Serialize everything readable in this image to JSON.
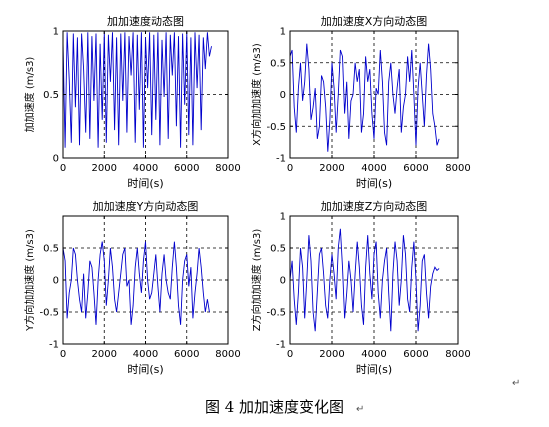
{
  "caption": "图 4  加加速度变化图",
  "para_marks": [
    "↵",
    "↵"
  ],
  "chart_data": [
    {
      "type": "line",
      "title": "加加速度动态图",
      "xlabel": "时间(s)",
      "ylabel": "加加速度 (m/s3)",
      "xlim": [
        0,
        8000
      ],
      "ylim": [
        0,
        1
      ],
      "xticks": [
        0,
        2000,
        4000,
        6000,
        8000
      ],
      "yticks": [
        0,
        0.5,
        1
      ],
      "ytick_labels": [
        "0",
        "0.5",
        "1"
      ],
      "grid": true,
      "color": "#0000cc",
      "series": [
        {
          "x": [
            0,
            100,
            200,
            300,
            400,
            500,
            600,
            700,
            800,
            900,
            1000,
            1100,
            1200,
            1300,
            1400,
            1500,
            1600,
            1700,
            1800,
            1900,
            2000,
            2100,
            2200,
            2300,
            2400,
            2500,
            2600,
            2700,
            2800,
            2900,
            3000,
            3100,
            3200,
            3300,
            3400,
            3500,
            3600,
            3700,
            3800,
            3900,
            4000,
            4100,
            4200,
            4300,
            4400,
            4500,
            4600,
            4700,
            4800,
            4900,
            5000,
            5100,
            5200,
            5300,
            5400,
            5500,
            5600,
            5700,
            5800,
            5900,
            6000,
            6100,
            6200,
            6300,
            6400,
            6500,
            6600,
            6700,
            6800,
            6900,
            7000,
            7100,
            7200
          ],
          "values": [
            0.92,
            0.08,
            0.99,
            0.62,
            0.12,
            0.98,
            0.4,
            0.95,
            0.1,
            0.98,
            0.7,
            0.2,
            0.99,
            0.15,
            0.96,
            0.45,
            0.98,
            0.08,
            0.9,
            0.3,
            0.99,
            0.12,
            0.97,
            0.6,
            0.99,
            0.22,
            0.95,
            0.1,
            0.98,
            0.45,
            0.99,
            0.2,
            0.96,
            0.65,
            0.99,
            0.12,
            0.97,
            0.38,
            0.99,
            0.08,
            0.95,
            0.55,
            0.99,
            0.18,
            0.97,
            0.3,
            0.99,
            0.1,
            0.93,
            0.48,
            0.99,
            0.15,
            0.97,
            0.65,
            0.99,
            0.25,
            0.96,
            0.08,
            0.98,
            0.42,
            0.99,
            0.18,
            0.95,
            0.1,
            0.99,
            0.55,
            0.97,
            0.22,
            0.95,
            0.7,
            0.99,
            0.8,
            0.88
          ]
        }
      ]
    },
    {
      "type": "line",
      "title": "加加速度X方向动态图",
      "xlabel": "时间(s)",
      "ylabel": "X方向加加速度 (m/s3)",
      "xlim": [
        0,
        8000
      ],
      "ylim": [
        -1,
        1
      ],
      "xticks": [
        0,
        2000,
        4000,
        6000,
        8000
      ],
      "yticks": [
        -1,
        -0.5,
        0,
        0.5,
        1
      ],
      "ytick_labels": [
        "-1",
        "-0.5",
        "0",
        "0.5",
        "1"
      ],
      "grid": true,
      "color": "#0000cc",
      "series": [
        {
          "x": [
            0,
            100,
            200,
            300,
            400,
            500,
            600,
            700,
            800,
            900,
            1000,
            1100,
            1200,
            1300,
            1400,
            1500,
            1600,
            1700,
            1800,
            1900,
            2000,
            2100,
            2200,
            2300,
            2400,
            2500,
            2600,
            2700,
            2800,
            2900,
            3000,
            3100,
            3200,
            3300,
            3400,
            3500,
            3600,
            3700,
            3800,
            3900,
            4000,
            4100,
            4200,
            4300,
            4400,
            4500,
            4600,
            4700,
            4800,
            4900,
            5000,
            5100,
            5200,
            5300,
            5400,
            5500,
            5600,
            5700,
            5800,
            5900,
            6000,
            6100,
            6200,
            6300,
            6400,
            6500,
            6600,
            6700,
            6800,
            6900,
            7000,
            7100
          ],
          "values": [
            0.6,
            0.7,
            -0.2,
            -0.6,
            0.1,
            0.5,
            -0.1,
            0.2,
            0.8,
            0.4,
            -0.4,
            -0.2,
            0.1,
            -0.7,
            -0.5,
            0.3,
            0.2,
            -0.2,
            -0.9,
            -0.4,
            0.5,
            0.1,
            -0.6,
            0.0,
            0.7,
            0.6,
            -0.3,
            0.2,
            -0.7,
            -0.1,
            0.0,
            0.5,
            0.2,
            0.4,
            -0.6,
            -0.3,
            0.6,
            0.2,
            0.4,
            -0.3,
            -0.7,
            0.1,
            0.0,
            0.7,
            0.2,
            -0.6,
            -0.8,
            0.2,
            0.5,
            0.0,
            -0.3,
            0.1,
            0.4,
            -0.6,
            -0.2,
            0.0,
            0.6,
            0.2,
            0.7,
            0.0,
            -0.8,
            0.1,
            0.5,
            0.0,
            -0.5,
            0.3,
            0.8,
            0.4,
            -0.3,
            -0.5,
            -0.8,
            -0.7
          ]
        }
      ]
    },
    {
      "type": "line",
      "title": "加加速度Y方向动态图",
      "xlabel": "时间(s)",
      "ylabel": "Y方向加加速度 (m/s3)",
      "xlim": [
        0,
        8000
      ],
      "ylim": [
        -1,
        1
      ],
      "xticks": [
        0,
        2000,
        4000,
        6000,
        8000
      ],
      "yticks": [
        -1,
        -0.5,
        0,
        0.5
      ],
      "ytick_labels": [
        "-1",
        "-0.5",
        "0",
        "0.5"
      ],
      "grid": true,
      "color": "#0000cc",
      "series": [
        {
          "x": [
            0,
            100,
            200,
            300,
            400,
            500,
            600,
            700,
            800,
            900,
            1000,
            1100,
            1200,
            1300,
            1400,
            1500,
            1600,
            1700,
            1800,
            1900,
            2000,
            2100,
            2200,
            2300,
            2400,
            2500,
            2600,
            2700,
            2800,
            2900,
            3000,
            3100,
            3200,
            3300,
            3400,
            3500,
            3600,
            3700,
            3800,
            3900,
            4000,
            4100,
            4200,
            4300,
            4400,
            4500,
            4600,
            4700,
            4800,
            4900,
            5000,
            5100,
            5200,
            5300,
            5400,
            5500,
            5600,
            5700,
            5800,
            5900,
            6000,
            6100,
            6200,
            6300,
            6400,
            6500,
            6600,
            6700,
            6800,
            6900,
            7000,
            7100
          ],
          "values": [
            0.5,
            0.3,
            -0.6,
            -0.2,
            0.0,
            0.5,
            0.4,
            0.0,
            -0.3,
            -0.5,
            0.1,
            -0.6,
            -0.2,
            0.3,
            0.2,
            -0.2,
            -0.7,
            0.0,
            0.4,
            0.6,
            0.3,
            -0.4,
            0.0,
            0.5,
            0.2,
            -0.3,
            -0.5,
            -0.2,
            0.1,
            0.4,
            0.5,
            -0.1,
            0.0,
            -0.7,
            -0.4,
            0.2,
            0.5,
            0.1,
            -0.2,
            0.3,
            0.6,
            0.0,
            -0.3,
            -0.2,
            0.1,
            0.4,
            -0.1,
            -0.5,
            0.1,
            0.4,
            0.0,
            -0.2,
            -0.3,
            0.2,
            0.6,
            0.2,
            -0.4,
            -0.7,
            0.0,
            0.3,
            0.4,
            -0.1,
            0.2,
            -0.6,
            -0.2,
            0.1,
            0.5,
            0.2,
            -0.2,
            -0.5,
            -0.3,
            -0.5
          ]
        }
      ]
    },
    {
      "type": "line",
      "title": "加加速度Z方向动态图",
      "xlabel": "时间(s)",
      "ylabel": "Z方向加加速度 (m/s3)",
      "xlim": [
        0,
        8000
      ],
      "ylim": [
        -1,
        1
      ],
      "xticks": [
        0,
        2000,
        4000,
        6000,
        8000
      ],
      "yticks": [
        -1,
        -0.5,
        0,
        0.5,
        1
      ],
      "ytick_labels": [
        "-1",
        "-0.5",
        "0",
        "0.5",
        "1"
      ],
      "grid": true,
      "color": "#0000cc",
      "series": [
        {
          "x": [
            0,
            100,
            200,
            300,
            400,
            500,
            600,
            700,
            800,
            900,
            1000,
            1100,
            1200,
            1300,
            1400,
            1500,
            1600,
            1700,
            1800,
            1900,
            2000,
            2100,
            2200,
            2300,
            2400,
            2500,
            2600,
            2700,
            2800,
            2900,
            3000,
            3100,
            3200,
            3300,
            3400,
            3500,
            3600,
            3700,
            3800,
            3900,
            4000,
            4100,
            4200,
            4300,
            4400,
            4500,
            4600,
            4700,
            4800,
            4900,
            5000,
            5100,
            5200,
            5300,
            5400,
            5500,
            5600,
            5700,
            5800,
            5900,
            6000,
            6100,
            6200,
            6300,
            6400,
            6500,
            6600,
            6700,
            6800,
            6900,
            7000,
            7100
          ],
          "values": [
            0.0,
            0.3,
            -0.3,
            -0.7,
            -0.2,
            0.5,
            0.2,
            -0.6,
            0.0,
            0.7,
            0.3,
            -0.5,
            -0.8,
            -0.2,
            0.4,
            0.5,
            0.1,
            -0.4,
            -0.6,
            0.0,
            0.4,
            0.1,
            -0.3,
            0.5,
            0.8,
            0.2,
            -0.6,
            -0.2,
            0.3,
            0.0,
            -0.5,
            0.1,
            0.6,
            0.2,
            -0.4,
            -0.7,
            0.2,
            0.7,
            0.1,
            -0.3,
            0.4,
            0.6,
            -0.2,
            -0.6,
            0.0,
            0.3,
            0.5,
            -0.2,
            -0.8,
            0.1,
            0.6,
            0.3,
            -0.4,
            0.0,
            0.7,
            0.4,
            -0.3,
            -0.5,
            0.2,
            0.6,
            0.0,
            -0.8,
            -0.4,
            0.3,
            0.4,
            -0.2,
            -0.6,
            -0.1,
            0.1,
            0.2,
            0.15,
            0.18
          ]
        }
      ]
    }
  ]
}
